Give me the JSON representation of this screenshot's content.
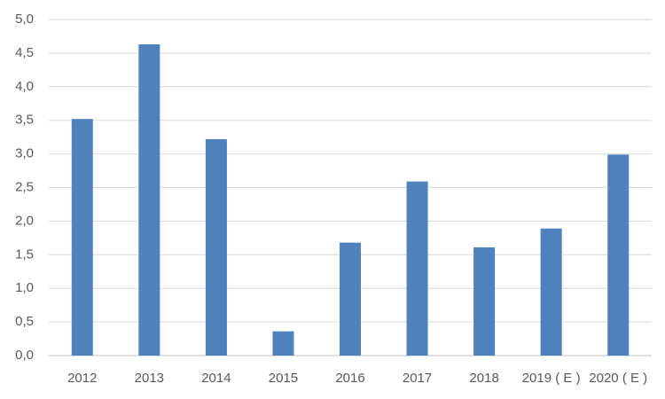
{
  "chart_data": {
    "type": "bar",
    "categories": [
      "2012",
      "2013",
      "2014",
      "2015",
      "2016",
      "2017",
      "2018",
      "2019 ( E )",
      "2020 ( E )"
    ],
    "values": [
      3.52,
      4.63,
      3.22,
      0.36,
      1.68,
      2.59,
      1.61,
      1.89,
      2.99
    ],
    "color": "#4f81bd",
    "ylim": [
      0,
      5
    ],
    "yticks": [
      {
        "value": 0,
        "label": "0,0"
      },
      {
        "value": 0.5,
        "label": "0,5"
      },
      {
        "value": 1,
        "label": "1,0"
      },
      {
        "value": 1.5,
        "label": "1,5"
      },
      {
        "value": 2,
        "label": "2,0"
      },
      {
        "value": 2.5,
        "label": "2,5"
      },
      {
        "value": 3,
        "label": "3,0"
      },
      {
        "value": 3.5,
        "label": "3,5"
      },
      {
        "value": 4,
        "label": "4,0"
      },
      {
        "value": 4.5,
        "label": "4,5"
      },
      {
        "value": 5,
        "label": "5,0"
      }
    ],
    "grid": true
  }
}
